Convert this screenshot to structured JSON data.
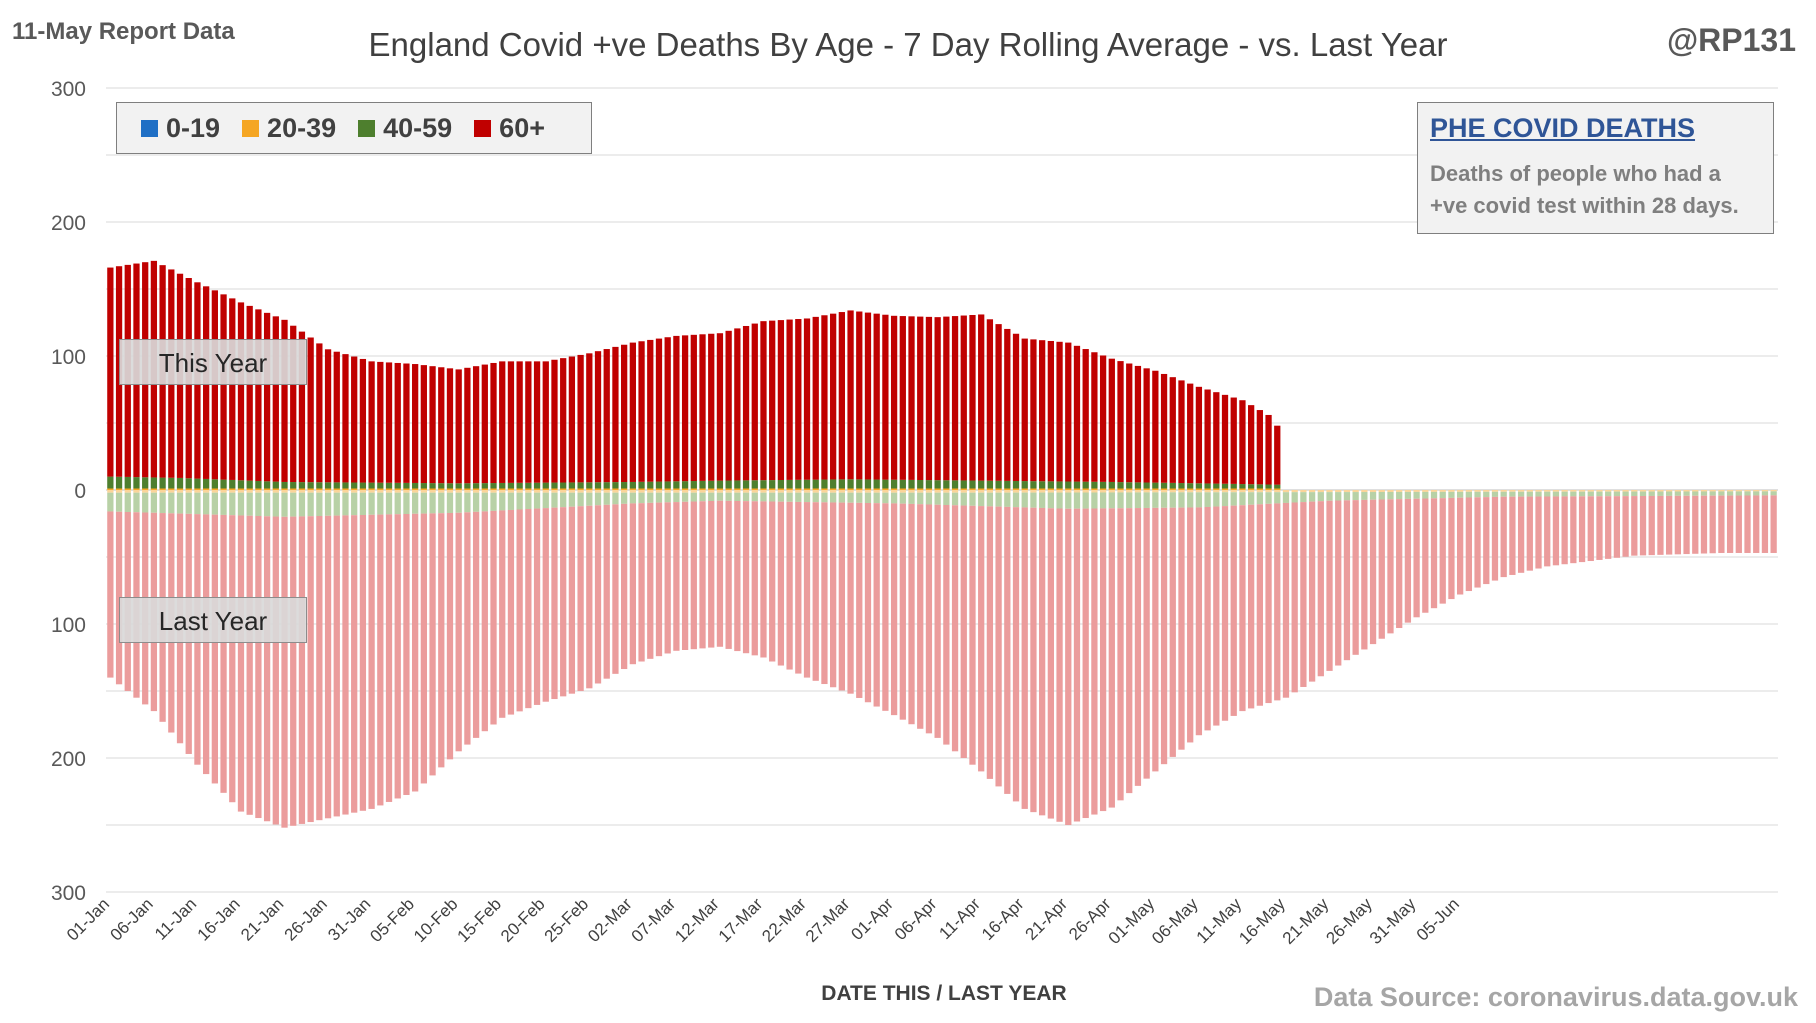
{
  "header": {
    "report_date": "11-May Report Data",
    "title": "England Covid +ve Deaths By Age - 7 Day Rolling Average - vs. Last Year",
    "handle": "@RP131"
  },
  "legend": [
    {
      "label": "0-19",
      "color": "#1f6fc5"
    },
    {
      "label": "20-39",
      "color": "#f5a623"
    },
    {
      "label": "40-59",
      "color": "#4e7f2e"
    },
    {
      "label": "60+",
      "color": "#c00000"
    }
  ],
  "info_box": {
    "title": "PHE COVID DEATHS",
    "line1": "Deaths of people who had a",
    "line2": "+ve covid test within 28 days."
  },
  "labels": {
    "this_year": "This Year",
    "last_year": "Last Year"
  },
  "footer": {
    "x_axis_title": "DATE THIS / LAST YEAR",
    "source": "Data Source: coronavirus.data.gov.uk"
  },
  "chart_data": {
    "type": "bar",
    "stacked": true,
    "y_tick_labels": [
      "300",
      "200",
      "100",
      "0",
      "100",
      "200",
      "300"
    ],
    "y_range": [
      -300,
      300
    ],
    "x_tick_labels": [
      "01-Jan",
      "06-Jan",
      "11-Jan",
      "16-Jan",
      "21-Jan",
      "26-Jan",
      "31-Jan",
      "05-Feb",
      "10-Feb",
      "15-Feb",
      "20-Feb",
      "25-Feb",
      "02-Mar",
      "07-Mar",
      "12-Mar",
      "17-Mar",
      "22-Mar",
      "27-Mar",
      "01-Apr",
      "06-Apr",
      "11-Apr",
      "16-Apr",
      "21-Apr",
      "26-Apr",
      "01-May",
      "06-May",
      "11-May",
      "16-May",
      "21-May",
      "26-May",
      "31-May",
      "05-Jun"
    ],
    "grid": true,
    "legend_position": "top-left",
    "this_year_total_keyframes": [
      [
        0,
        166
      ],
      [
        5,
        171
      ],
      [
        10,
        155
      ],
      [
        15,
        140
      ],
      [
        20,
        127
      ],
      [
        25,
        105
      ],
      [
        30,
        96
      ],
      [
        35,
        94
      ],
      [
        40,
        90
      ],
      [
        45,
        96
      ],
      [
        50,
        96
      ],
      [
        55,
        102
      ],
      [
        60,
        110
      ],
      [
        65,
        115
      ],
      [
        70,
        117
      ],
      [
        75,
        126
      ],
      [
        80,
        128
      ],
      [
        85,
        134
      ],
      [
        90,
        130
      ],
      [
        95,
        129
      ],
      [
        100,
        131
      ],
      [
        105,
        113
      ],
      [
        110,
        110
      ],
      [
        115,
        98
      ],
      [
        120,
        89
      ],
      [
        125,
        77
      ],
      [
        130,
        67
      ],
      [
        133,
        56
      ],
      [
        134,
        48
      ]
    ],
    "this_year_40_59_keyframes": [
      [
        0,
        10
      ],
      [
        8,
        9
      ],
      [
        20,
        6
      ],
      [
        40,
        5
      ],
      [
        60,
        6
      ],
      [
        70,
        7
      ],
      [
        85,
        8
      ],
      [
        100,
        7
      ],
      [
        115,
        6
      ],
      [
        125,
        5
      ],
      [
        134,
        4
      ]
    ],
    "last_year_total_keyframes": [
      [
        0,
        140
      ],
      [
        5,
        165
      ],
      [
        10,
        205
      ],
      [
        15,
        240
      ],
      [
        20,
        252
      ],
      [
        25,
        245
      ],
      [
        30,
        238
      ],
      [
        35,
        225
      ],
      [
        40,
        195
      ],
      [
        45,
        170
      ],
      [
        50,
        158
      ],
      [
        55,
        148
      ],
      [
        60,
        130
      ],
      [
        65,
        120
      ],
      [
        70,
        117
      ],
      [
        75,
        125
      ],
      [
        80,
        140
      ],
      [
        85,
        152
      ],
      [
        90,
        168
      ],
      [
        95,
        185
      ],
      [
        100,
        210
      ],
      [
        105,
        238
      ],
      [
        110,
        250
      ],
      [
        115,
        237
      ],
      [
        120,
        210
      ],
      [
        125,
        183
      ],
      [
        130,
        165
      ],
      [
        135,
        155
      ],
      [
        140,
        135
      ],
      [
        145,
        115
      ],
      [
        150,
        95
      ],
      [
        155,
        78
      ],
      [
        160,
        65
      ],
      [
        165,
        57
      ],
      [
        170,
        53
      ],
      [
        175,
        49
      ],
      [
        180,
        48
      ],
      [
        185,
        47
      ],
      [
        191,
        47
      ]
    ],
    "last_year_40_59_keyframes": [
      [
        0,
        16
      ],
      [
        20,
        20
      ],
      [
        40,
        17
      ],
      [
        60,
        10
      ],
      [
        70,
        8
      ],
      [
        90,
        10
      ],
      [
        110,
        14
      ],
      [
        125,
        13
      ],
      [
        140,
        8
      ],
      [
        160,
        5
      ],
      [
        191,
        4
      ]
    ],
    "last_year_20_39_keyframes": [
      [
        0,
        2
      ],
      [
        100,
        2
      ],
      [
        191,
        1
      ]
    ],
    "n_days_this_year": 135,
    "n_days_last_year": 192
  }
}
